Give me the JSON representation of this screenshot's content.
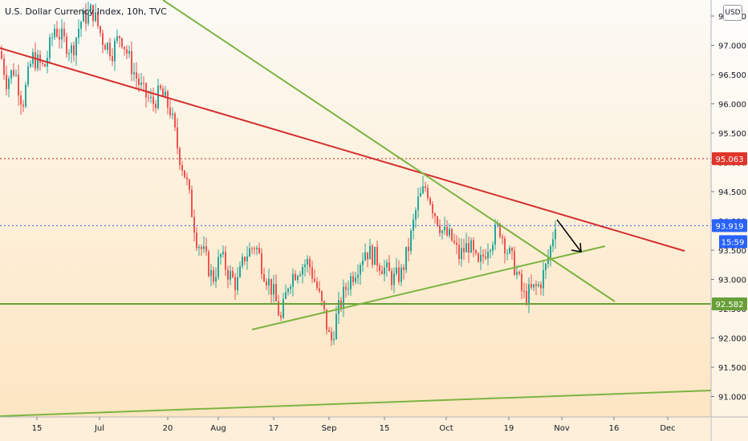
{
  "header": {
    "title": "U.S. Dollar Currency Index, 10h, TVC",
    "currency_label": "USD"
  },
  "chart_data": {
    "type": "candlestick",
    "ylim": [
      90.5,
      97.75
    ],
    "y_ticks": [
      91.0,
      91.5,
      92.0,
      92.5,
      93.0,
      93.5,
      94.0,
      94.5,
      95.0,
      95.5,
      96.0,
      96.5,
      97.0,
      97.5
    ],
    "y_tick_labels": [
      "91.000",
      "91.500",
      "92.000",
      "92.500",
      "93.000",
      "93.500",
      "94.000",
      "94.500",
      "95.000",
      "95.500",
      "96.000",
      "96.500",
      "97.000",
      "97.500"
    ],
    "x_tick_labels": [
      "15",
      "Jul",
      "20",
      "Aug",
      "17",
      "Sep",
      "15",
      "Oct",
      "19",
      "Nov",
      "16",
      "Dec"
    ],
    "price_tags": [
      {
        "label": "95.063",
        "value": 95.063,
        "color": "#e0352b"
      },
      {
        "label": "93.919",
        "value": 93.919,
        "color": "#2962ff"
      },
      {
        "label": "92.582",
        "value": 92.582,
        "color": "#689f38"
      }
    ],
    "countdown": "15:59",
    "horizontal_levels": [
      {
        "value": 95.063,
        "color": "#c62828",
        "style": "dotted"
      },
      {
        "value": 93.919,
        "color": "#2962ff",
        "style": "dotted"
      },
      {
        "value": 92.582,
        "color": "#689f38",
        "style": "solid"
      }
    ],
    "colors": {
      "up": "#26a69a",
      "down": "#ef5350",
      "red_line": "#d32f2f",
      "green_line": "#7cb342"
    }
  }
}
